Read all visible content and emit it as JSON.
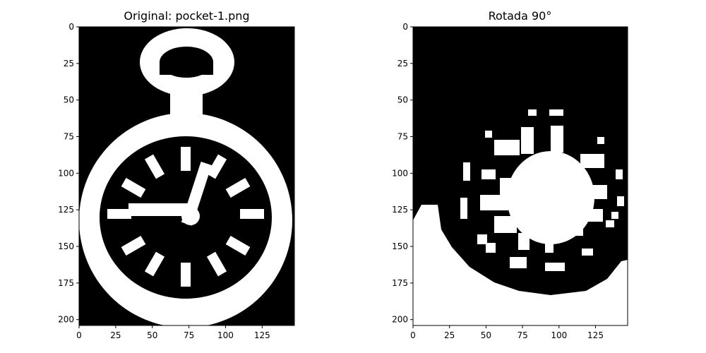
{
  "chart_data": [
    {
      "type": "image",
      "title": "Original: pocket-1.png",
      "xlim": [
        0,
        147
      ],
      "ylim": [
        204,
        0
      ],
      "x_ticks": [
        0,
        25,
        50,
        75,
        100,
        125
      ],
      "y_ticks": [
        0,
        25,
        50,
        75,
        100,
        125,
        150,
        175,
        200
      ],
      "colormap": {
        "background": "#000000",
        "foreground": "#ffffff"
      },
      "content": "binary silhouette of a pocket watch (ring, stem, case, dial with hour markers and hands)"
    },
    {
      "type": "image",
      "title": "Rotada 90°",
      "xlim": [
        0,
        147
      ],
      "ylim": [
        204,
        0
      ],
      "x_ticks": [
        0,
        25,
        50,
        75,
        100,
        125
      ],
      "y_ticks": [
        0,
        25,
        50,
        75,
        100,
        125,
        150,
        175,
        200
      ],
      "colormap": {
        "background": "#000000",
        "foreground": "#ffffff"
      },
      "content": "the same binary image rotated 90 degrees and cropped"
    }
  ],
  "colors": {
    "foreground": "#ffffff",
    "background": "#000000",
    "axes": "#000000"
  }
}
